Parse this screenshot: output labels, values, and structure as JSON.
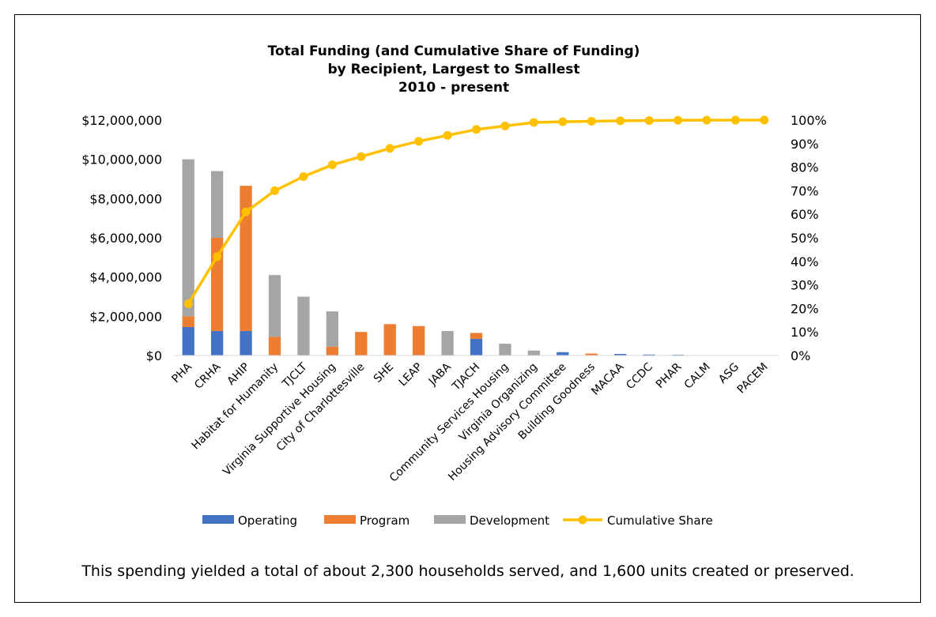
{
  "chart_data": {
    "type": "bar",
    "stacked": true,
    "title": [
      "Total Funding (and Cumulative Share of Funding)",
      "by Recipient, Largest to Smallest",
      "2010 - present"
    ],
    "categories": [
      "PHA",
      "CRHA",
      "AHIP",
      "Habitat for Humanity",
      "TJCLT",
      "Virginia Supportive Housing",
      "City of Charlottesville",
      "SHE",
      "LEAP",
      "JABA",
      "TJACH",
      "Community Services Housing",
      "Virginia Organizing",
      "Housing Advisory Committee",
      "Building Goodness",
      "MACAA",
      "CCDC",
      "PHAR",
      "CALM",
      "ASG",
      "PACEM"
    ],
    "series": [
      {
        "name": "Operating",
        "color": "#4472C4",
        "values": [
          1450000,
          1250000,
          1250000,
          0,
          0,
          0,
          0,
          0,
          0,
          0,
          850000,
          0,
          0,
          170000,
          0,
          80000,
          50000,
          40000,
          20000,
          10000,
          5000
        ]
      },
      {
        "name": "Program",
        "color": "#ED7D31",
        "values": [
          550000,
          4750000,
          7400000,
          950000,
          0,
          450000,
          1200000,
          1600000,
          1500000,
          0,
          300000,
          0,
          0,
          0,
          100000,
          0,
          0,
          0,
          0,
          0,
          0
        ]
      },
      {
        "name": "Development",
        "color": "#A5A5A5",
        "values": [
          8000000,
          3400000,
          0,
          3150000,
          3000000,
          1800000,
          0,
          0,
          0,
          1250000,
          0,
          600000,
          250000,
          0,
          0,
          0,
          0,
          0,
          0,
          0,
          0
        ]
      }
    ],
    "line_series": {
      "name": "Cumulative Share",
      "color": "#FFC000",
      "axis": "secondary",
      "values": [
        0.22,
        0.42,
        0.61,
        0.7,
        0.76,
        0.81,
        0.845,
        0.88,
        0.91,
        0.935,
        0.96,
        0.975,
        0.99,
        0.993,
        0.995,
        0.997,
        0.998,
        0.999,
        0.9995,
        0.9998,
        1.0
      ]
    },
    "y_ticks": [
      "$0",
      "$2,000,000",
      "$4,000,000",
      "$6,000,000",
      "$8,000,000",
      "$10,000,000",
      "$12,000,000"
    ],
    "y2_ticks": [
      "0%",
      "10%",
      "20%",
      "30%",
      "40%",
      "50%",
      "60%",
      "70%",
      "80%",
      "90%",
      "100%"
    ],
    "ylim": [
      0,
      12000000
    ],
    "y2lim": [
      0,
      1
    ],
    "grid": false,
    "legend_placement": "bottom"
  },
  "caption": "This spending yielded a total of about 2,300 households served, and 1,600 units created or preserved."
}
